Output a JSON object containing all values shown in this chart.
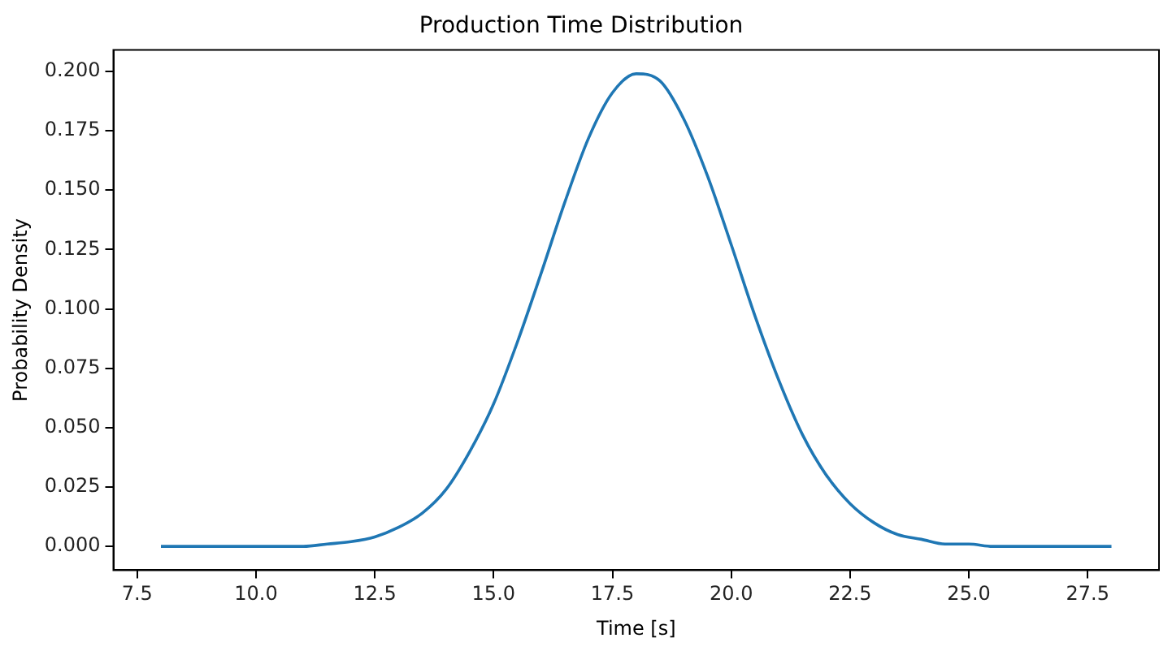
{
  "chart_data": {
    "type": "line",
    "title": "Production Time Distribution",
    "xlabel": "Time [s]",
    "ylabel": "Probability Density",
    "x": [
      8,
      8.5,
      9,
      9.5,
      10,
      10.5,
      11,
      11.5,
      12,
      12.5,
      13,
      13.5,
      14,
      14.5,
      15,
      15.5,
      16,
      16.5,
      17,
      17.5,
      18,
      18.5,
      19,
      19.5,
      20,
      20.5,
      21,
      21.5,
      22,
      22.5,
      23,
      23.5,
      24,
      24.5,
      25,
      25.5,
      26,
      26.5,
      27,
      27.5,
      28
    ],
    "series": [
      {
        "color": "#1f77b4",
        "values": [
          0,
          0,
          0,
          0,
          0,
          0,
          0,
          0.001,
          0.002,
          0.004,
          0.008,
          0.014,
          0.024,
          0.04,
          0.06,
          0.086,
          0.115,
          0.145,
          0.172,
          0.191,
          0.199,
          0.196,
          0.18,
          0.156,
          0.127,
          0.097,
          0.07,
          0.047,
          0.03,
          0.018,
          0.01,
          0.005,
          0.003,
          0.001,
          0.001,
          0,
          0,
          0,
          0,
          0,
          0
        ]
      }
    ],
    "xlim": [
      7,
      29
    ],
    "xticks": [
      {
        "value": 7.5,
        "label": "7.5"
      },
      {
        "value": 10,
        "label": "10.0"
      },
      {
        "value": 12.5,
        "label": "12.5"
      },
      {
        "value": 15,
        "label": "15.0"
      },
      {
        "value": 17.5,
        "label": "17.5"
      },
      {
        "value": 20,
        "label": "20.0"
      },
      {
        "value": 22.5,
        "label": "22.5"
      },
      {
        "value": 25,
        "label": "25.0"
      },
      {
        "value": 27.5,
        "label": "27.5"
      }
    ],
    "ylim": [
      -0.01,
      0.209
    ],
    "yticks": [
      {
        "value": 0,
        "label": "0.000"
      },
      {
        "value": 0.025,
        "label": "0.025"
      },
      {
        "value": 0.05,
        "label": "0.050"
      },
      {
        "value": 0.075,
        "label": "0.075"
      },
      {
        "value": 0.1,
        "label": "0.100"
      },
      {
        "value": 0.125,
        "label": "0.125"
      },
      {
        "value": 0.15,
        "label": "0.150"
      },
      {
        "value": 0.175,
        "label": "0.175"
      },
      {
        "value": 0.2,
        "label": "0.200"
      }
    ],
    "grid": false,
    "legend": false,
    "marker": "none",
    "line_style": "solid"
  }
}
